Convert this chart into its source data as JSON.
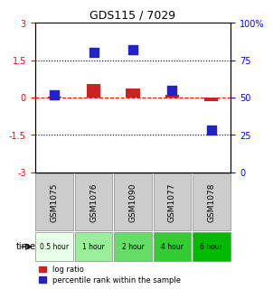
{
  "title": "GDS115 / 7029",
  "categories": [
    "GSM1075",
    "GSM1076",
    "GSM1090",
    "GSM1077",
    "GSM1078"
  ],
  "time_labels": [
    "0.5 hour",
    "1 hour",
    "2 hour",
    "4 hour",
    "6 hour"
  ],
  "time_colors": [
    "#ccffcc",
    "#99ee99",
    "#66dd66",
    "#33cc33",
    "#00bb00"
  ],
  "log_ratio": [
    0.05,
    0.55,
    0.35,
    0.12,
    -0.15
  ],
  "percentile_rank": [
    52,
    80,
    82,
    55,
    28
  ],
  "bar_color": "#cc2222",
  "dot_color": "#2222cc",
  "ylim_left": [
    -3,
    3
  ],
  "ylim_right": [
    0,
    100
  ],
  "yticks_left": [
    -3,
    -1.5,
    0,
    1.5,
    3
  ],
  "yticks_right": [
    0,
    25,
    50,
    75,
    100
  ],
  "ytick_labels_left": [
    "-3",
    "-1.5",
    "0",
    "1.5",
    "3"
  ],
  "ytick_labels_right": [
    "0",
    "25",
    "50",
    "75",
    "100%"
  ],
  "hline_y": 0,
  "dotted_lines": [
    -1.5,
    1.5
  ],
  "legend_log_label": "log ratio",
  "legend_pct_label": "percentile rank within the sample",
  "time_arrow_label": "time",
  "background_color": "#ffffff",
  "plot_bg": "#ffffff",
  "grid_color": "#000000"
}
